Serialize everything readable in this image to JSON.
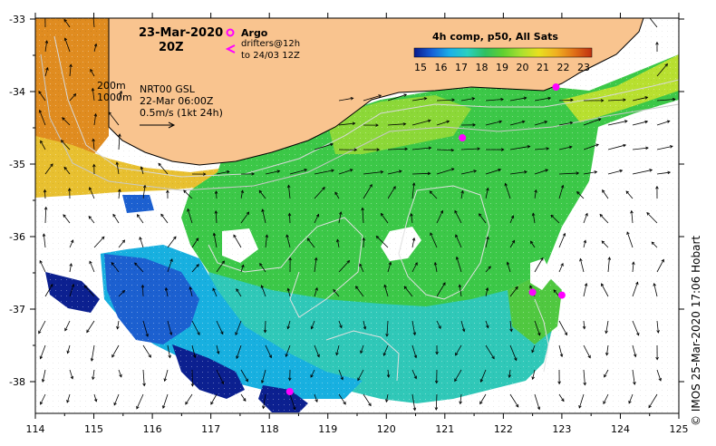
{
  "header": {
    "date": "23-Mar-2020",
    "time": "20Z"
  },
  "legend": {
    "argo_label": "Argo",
    "drifters_line1": "drifters@12h",
    "drifters_line2": "to 24/03 12Z",
    "isobath_200": "200m",
    "isobath_1000": "1000m",
    "altimetry_line1": "NRT00 GSL",
    "altimetry_line2": "22-Mar 06:00Z",
    "vector_scale": "0.5m/s (1kt 24h)",
    "colorbar_title": "4h comp, p50, All Sats",
    "colorbar_ticks": [
      "15",
      "16",
      "17",
      "18",
      "19",
      "20",
      "21",
      "22",
      "23"
    ],
    "colorbar_colors": [
      "#0a1a8c",
      "#1560d8",
      "#1ab0e8",
      "#2ad0c0",
      "#30c060",
      "#60d030",
      "#a8e030",
      "#e8e020",
      "#f0b020",
      "#e07018",
      "#c03010"
    ]
  },
  "axes": {
    "x_ticks": [
      "114",
      "115",
      "116",
      "117",
      "118",
      "119",
      "120",
      "121",
      "122",
      "123",
      "124",
      "125"
    ],
    "y_ticks": [
      "-33",
      "-34",
      "-35",
      "-36",
      "-37",
      "-38"
    ]
  },
  "credit": "© IMOS 25-Mar-2020 17:06 Hobart",
  "colors": {
    "land": "#f9c48f",
    "argo": "#ff00ff"
  },
  "argo_floats": [
    {
      "lon": 121.3,
      "lat": -34.65
    },
    {
      "lon": 122.5,
      "lat": -36.78
    },
    {
      "lon": 123.0,
      "lat": -36.82
    },
    {
      "lon": 118.35,
      "lat": -38.15
    },
    {
      "lon": 122.9,
      "lat": -33.95
    }
  ]
}
